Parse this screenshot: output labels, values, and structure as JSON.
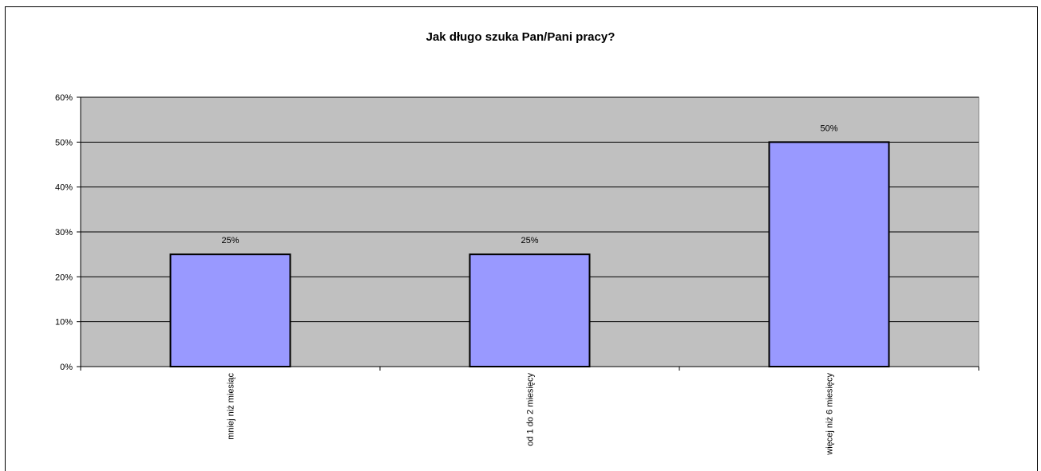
{
  "chart_data": {
    "type": "bar",
    "title": "Jak długo szuka Pan/Pani pracy?",
    "categories": [
      "mniej niż miesiąc",
      "od 1 do 2 miesięcy",
      "więcej niż 6 miesięcy"
    ],
    "values": [
      25,
      25,
      50
    ],
    "data_labels": [
      "25%",
      "25%",
      "50%"
    ],
    "ylim": [
      0,
      60
    ],
    "yticks": [
      "0%",
      "10%",
      "20%",
      "30%",
      "40%",
      "50%",
      "60%"
    ],
    "grid": true,
    "legend": "none",
    "colors": {
      "bar_fill": "#9999ff",
      "bar_stroke": "#000000",
      "plot_bg": "#c0c0c0",
      "grid": "#000000"
    }
  }
}
